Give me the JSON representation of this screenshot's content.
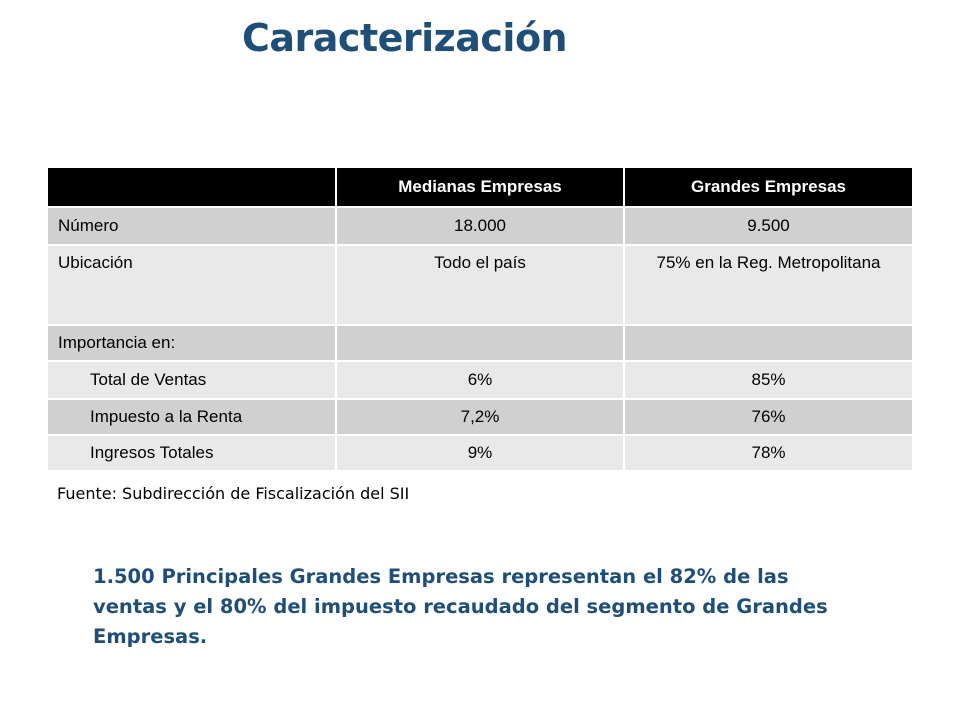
{
  "title": "Caracterización",
  "table": {
    "headers": [
      "",
      "Medianas Empresas",
      "Grandes Empresas"
    ],
    "rows": [
      {
        "label": "Número",
        "medianas": "18.000",
        "grandes": "9.500"
      },
      {
        "label": "Ubicación",
        "medianas": "Todo el país",
        "grandes": "75% en la Reg. Metropolitana"
      },
      {
        "label": "Importancia en:",
        "medianas": "",
        "grandes": ""
      },
      {
        "label": "Total de Ventas",
        "medianas": "6%",
        "grandes": "85%"
      },
      {
        "label": "Impuesto a la Renta",
        "medianas": "7,2%",
        "grandes": "76%"
      },
      {
        "label": "Ingresos Totales",
        "medianas": "9%",
        "grandes": "78%"
      }
    ]
  },
  "source": "Fuente: Subdirección de Fiscalización del SII",
  "note": "1.500  Principales Grandes Empresas representan el 82% de las ventas y el 80% del impuesto recaudado del segmento de Grandes Empresas."
}
